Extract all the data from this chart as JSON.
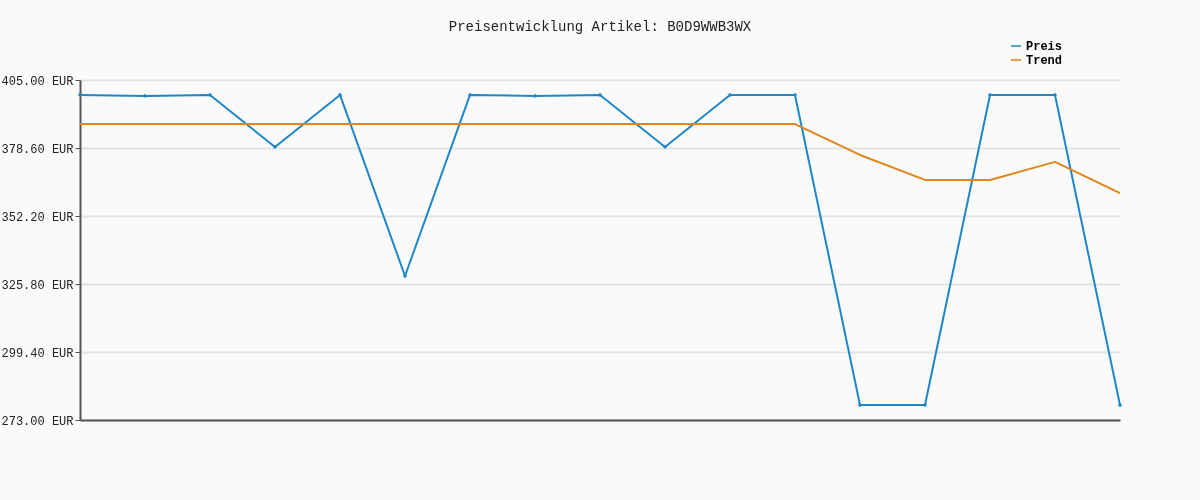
{
  "chart_data": {
    "type": "line",
    "title": "Preisentwicklung Artikel: B0D9WWB3WX",
    "categories": [
      null,
      null,
      null,
      null,
      null,
      null,
      null,
      null,
      null,
      null,
      null,
      null,
      null,
      null,
      null,
      null,
      null
    ],
    "series": [
      {
        "name": "Preis",
        "color": "#1f86c8",
        "marker": "diamond",
        "values": [
          399.2,
          398.8,
          399.2,
          379.0,
          399.2,
          328.9,
          399.2,
          398.8,
          399.2,
          379.0,
          399.2,
          399.2,
          278.8,
          278.8,
          399.2,
          399.2,
          278.8
        ]
      },
      {
        "name": "Trend",
        "color": "#e0861a",
        "marker": "none",
        "values": [
          387.9,
          387.9,
          387.9,
          387.9,
          387.9,
          387.9,
          387.9,
          387.9,
          387.9,
          387.9,
          387.9,
          387.9,
          375.9,
          366.2,
          366.2,
          373.2,
          361.1
        ]
      }
    ],
    "ylim": [
      273,
      405
    ],
    "yticks": [
      {
        "value": 273,
        "label": "273.00 EUR"
      },
      {
        "value": 299.4,
        "label": "299.40 EUR"
      },
      {
        "value": 325.8,
        "label": "325.80 EUR"
      },
      {
        "value": 352.2,
        "label": "352.20 EUR"
      },
      {
        "value": 378.6,
        "label": "378.60 EUR"
      },
      {
        "value": 405,
        "label": "405.00 EUR"
      }
    ],
    "grid": "y",
    "legend": "top right",
    "line_style": "solid"
  }
}
